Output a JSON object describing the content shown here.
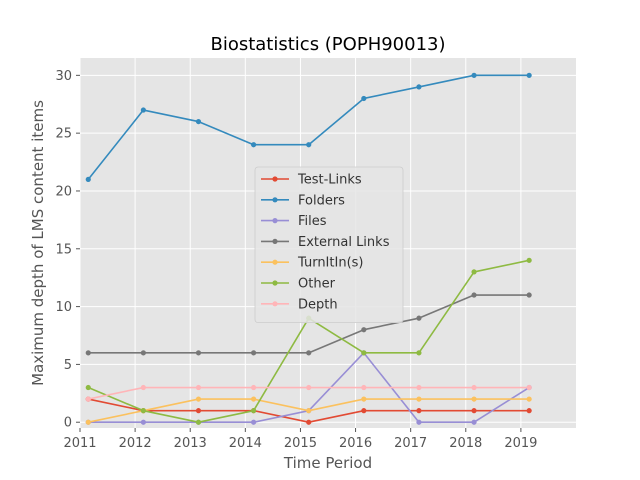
{
  "chart_data": {
    "type": "line",
    "title": "Biostatistics (POPH90013)",
    "xlabel": "Time Period",
    "ylabel": "Maximum depth of LMS content items",
    "xlim": [
      2011,
      2020
    ],
    "ylim": [
      -0.5,
      31.5
    ],
    "x_ticks": [
      "2011",
      "2012",
      "2013",
      "2014",
      "2015",
      "2016",
      "2017",
      "2018",
      "2019"
    ],
    "y_ticks": [
      "0",
      "5",
      "10",
      "15",
      "20",
      "25",
      "30"
    ],
    "x": [
      2011.15,
      2012.15,
      2013.15,
      2014.15,
      2015.15,
      2016.15,
      2017.15,
      2018.15,
      2019.15
    ],
    "grid": true,
    "legend_position": "center",
    "series": [
      {
        "name": "Test-Links",
        "color": "#E24A33",
        "values": [
          2,
          1,
          1,
          1,
          0,
          1,
          1,
          1,
          1
        ]
      },
      {
        "name": "Folders",
        "color": "#348ABD",
        "values": [
          21,
          27,
          26,
          24,
          24,
          28,
          29,
          30,
          30
        ]
      },
      {
        "name": "Files",
        "color": "#988ED5",
        "values": [
          0,
          0,
          0,
          0,
          1,
          6,
          0,
          0,
          3
        ]
      },
      {
        "name": "External Links",
        "color": "#777777",
        "values": [
          6,
          6,
          6,
          6,
          6,
          8,
          9,
          11,
          11
        ]
      },
      {
        "name": "TurnItIn(s)",
        "color": "#FBC15E",
        "values": [
          0,
          1,
          2,
          2,
          1,
          2,
          2,
          2,
          2
        ]
      },
      {
        "name": "Other",
        "color": "#8EBA42",
        "values": [
          3,
          1,
          0,
          1,
          9,
          6,
          6,
          13,
          14
        ]
      },
      {
        "name": "Depth",
        "color": "#FFB5B8",
        "values": [
          2,
          3,
          3,
          3,
          3,
          3,
          3,
          3,
          3
        ]
      }
    ]
  }
}
